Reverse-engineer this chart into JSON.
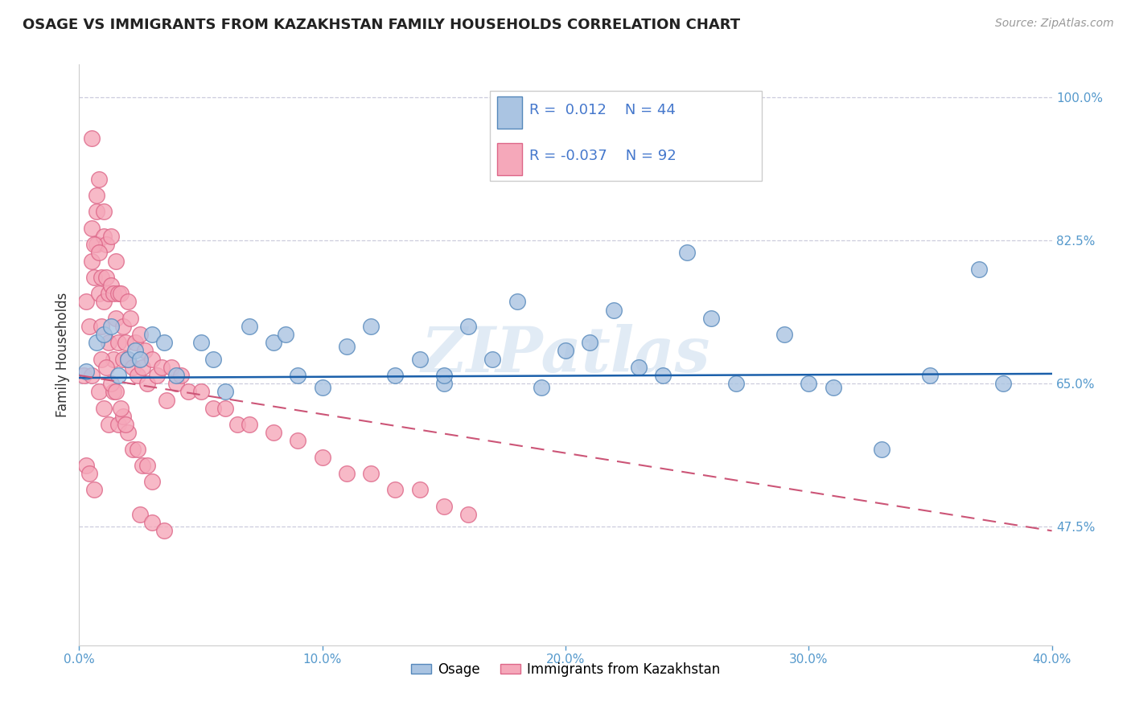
{
  "title": "OSAGE VS IMMIGRANTS FROM KAZAKHSTAN FAMILY HOUSEHOLDS CORRELATION CHART",
  "source": "Source: ZipAtlas.com",
  "ylabel": "Family Households",
  "xlim": [
    0.0,
    0.4
  ],
  "ylim": [
    0.33,
    1.04
  ],
  "right_yticks": [
    1.0,
    0.825,
    0.65,
    0.475
  ],
  "right_yticklabels": [
    "100.0%",
    "82.5%",
    "65.0%",
    "47.5%"
  ],
  "xticks": [
    0.0,
    0.1,
    0.2,
    0.3,
    0.4
  ],
  "xticklabels": [
    "0.0%",
    "10.0%",
    "20.0%",
    "30.0%",
    "40.0%"
  ],
  "legend_label1": "Osage",
  "legend_label2": "Immigrants from Kazakhstan",
  "watermark": "ZIPatlas",
  "osage_color": "#aac4e2",
  "kazakhstan_color": "#f5a8ba",
  "osage_edge": "#5588bb",
  "kazakhstan_edge": "#dd6688",
  "trend_osage_color": "#1a5faa",
  "trend_kaz_color": "#cc5577",
  "tick_color": "#5599cc",
  "grid_color": "#ccccdd",
  "osage_x": [
    0.003,
    0.007,
    0.01,
    0.013,
    0.016,
    0.02,
    0.023,
    0.03,
    0.035,
    0.04,
    0.05,
    0.06,
    0.07,
    0.08,
    0.09,
    0.1,
    0.11,
    0.12,
    0.13,
    0.14,
    0.15,
    0.16,
    0.17,
    0.18,
    0.19,
    0.2,
    0.21,
    0.22,
    0.23,
    0.24,
    0.26,
    0.27,
    0.29,
    0.31,
    0.33,
    0.35,
    0.37,
    0.38,
    0.025,
    0.055,
    0.085,
    0.15,
    0.25,
    0.3
  ],
  "osage_y": [
    0.665,
    0.7,
    0.71,
    0.72,
    0.66,
    0.68,
    0.69,
    0.71,
    0.7,
    0.66,
    0.7,
    0.64,
    0.72,
    0.7,
    0.66,
    0.645,
    0.695,
    0.72,
    0.66,
    0.68,
    0.65,
    0.72,
    0.68,
    0.75,
    0.645,
    0.69,
    0.7,
    0.74,
    0.67,
    0.66,
    0.73,
    0.65,
    0.71,
    0.645,
    0.57,
    0.66,
    0.79,
    0.65,
    0.68,
    0.68,
    0.71,
    0.66,
    0.81,
    0.65
  ],
  "kaz_x": [
    0.002,
    0.003,
    0.004,
    0.005,
    0.005,
    0.006,
    0.007,
    0.007,
    0.008,
    0.008,
    0.009,
    0.009,
    0.01,
    0.01,
    0.01,
    0.011,
    0.011,
    0.012,
    0.012,
    0.013,
    0.013,
    0.014,
    0.014,
    0.015,
    0.015,
    0.016,
    0.016,
    0.017,
    0.018,
    0.018,
    0.019,
    0.02,
    0.02,
    0.021,
    0.022,
    0.023,
    0.024,
    0.025,
    0.026,
    0.027,
    0.028,
    0.03,
    0.032,
    0.034,
    0.036,
    0.038,
    0.04,
    0.042,
    0.045,
    0.05,
    0.055,
    0.06,
    0.065,
    0.07,
    0.08,
    0.09,
    0.1,
    0.11,
    0.12,
    0.13,
    0.14,
    0.15,
    0.16,
    0.005,
    0.008,
    0.01,
    0.012,
    0.014,
    0.016,
    0.018,
    0.02,
    0.022,
    0.024,
    0.026,
    0.028,
    0.03,
    0.025,
    0.03,
    0.035,
    0.005,
    0.007,
    0.006,
    0.008,
    0.003,
    0.004,
    0.006,
    0.009,
    0.011,
    0.013,
    0.015,
    0.017,
    0.019
  ],
  "kaz_y": [
    0.66,
    0.75,
    0.72,
    0.8,
    0.84,
    0.78,
    0.82,
    0.86,
    0.76,
    0.9,
    0.72,
    0.78,
    0.83,
    0.75,
    0.86,
    0.78,
    0.82,
    0.76,
    0.7,
    0.83,
    0.77,
    0.68,
    0.76,
    0.8,
    0.73,
    0.76,
    0.7,
    0.76,
    0.72,
    0.68,
    0.7,
    0.75,
    0.68,
    0.73,
    0.67,
    0.7,
    0.66,
    0.71,
    0.67,
    0.69,
    0.65,
    0.68,
    0.66,
    0.67,
    0.63,
    0.67,
    0.65,
    0.66,
    0.64,
    0.64,
    0.62,
    0.62,
    0.6,
    0.6,
    0.59,
    0.58,
    0.56,
    0.54,
    0.54,
    0.52,
    0.52,
    0.5,
    0.49,
    0.66,
    0.64,
    0.62,
    0.6,
    0.64,
    0.6,
    0.61,
    0.59,
    0.57,
    0.57,
    0.55,
    0.55,
    0.53,
    0.49,
    0.48,
    0.47,
    0.95,
    0.88,
    0.82,
    0.81,
    0.55,
    0.54,
    0.52,
    0.68,
    0.67,
    0.65,
    0.64,
    0.62,
    0.6
  ],
  "osage_trend_x": [
    0.0,
    0.4
  ],
  "osage_trend_y": [
    0.657,
    0.662
  ],
  "kaz_trend_x": [
    0.0,
    0.4
  ],
  "kaz_trend_y": [
    0.66,
    0.47
  ]
}
